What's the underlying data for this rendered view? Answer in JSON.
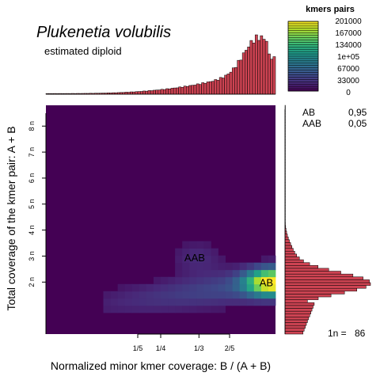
{
  "title": "Plukenetia volubilis",
  "subtitle": "estimated diploid",
  "chart_data": {
    "type": "heatmap",
    "xlabel": "Normalized minor kmer coverage: B / (A + B)",
    "ylabel": "Total coverage of the kmer pair: A + B",
    "x_ticks": [
      {
        "label": "1/5",
        "value": 0.2
      },
      {
        "label": "1/4",
        "value": 0.25
      },
      {
        "label": "1/3",
        "value": 0.3333
      },
      {
        "label": "2/5",
        "value": 0.4
      }
    ],
    "y_ticks": [
      {
        "label": "2 n",
        "value": 2
      },
      {
        "label": "3 n",
        "value": 3
      },
      {
        "label": "4 n",
        "value": 4
      },
      {
        "label": "5 n",
        "value": 5
      },
      {
        "label": "6 n",
        "value": 6
      },
      {
        "label": "7 n",
        "value": 7
      },
      {
        "label": "8 n",
        "value": 8
      }
    ],
    "xlim": [
      0,
      0.5
    ],
    "ylim": [
      0,
      8.8
    ],
    "peaks": [
      {
        "label": "AB",
        "x": 0.49,
        "y": 2.0
      },
      {
        "label": "AAB",
        "x": 0.33,
        "y": 2.95
      }
    ],
    "legend": {
      "title": "kmers pairs",
      "ticks": [
        "201000",
        "167000",
        "134000",
        "1e+05",
        "67000",
        "33000",
        "0"
      ],
      "max": 201000,
      "colors": [
        "#440154",
        "#482878",
        "#3e4989",
        "#31688e",
        "#26828e",
        "#1f9e89",
        "#35b779",
        "#6ece58",
        "#b5de2b",
        "#fde725"
      ]
    },
    "proportions": [
      {
        "label": "AB",
        "value": "0,95"
      },
      {
        "label": "AAB",
        "value": "0,05"
      }
    ],
    "one_n": {
      "label": "1n =",
      "value": "86"
    },
    "bar_color": "#cd4352"
  }
}
